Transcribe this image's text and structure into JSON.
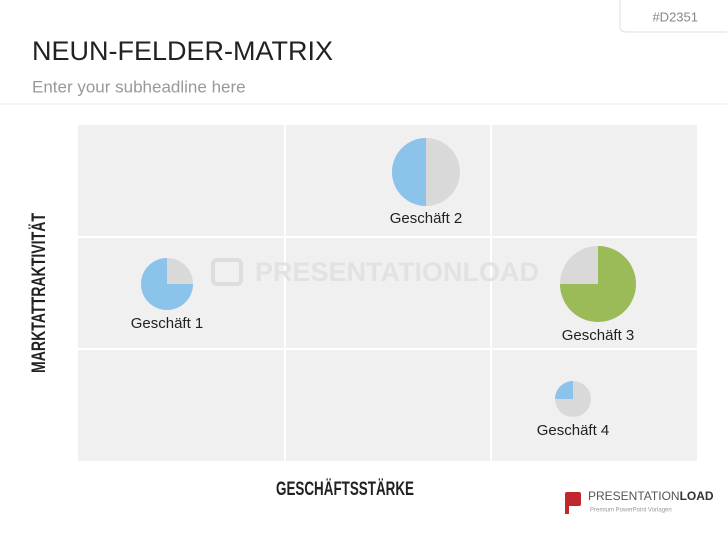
{
  "header": {
    "code": "#D2351",
    "title": "NEUN-FELDER-MATRIX",
    "subtitle": "Enter your subheadline here"
  },
  "matrix": {
    "y_label": "MARKTATTRAKTIVITÄT",
    "x_label": "GESCHÄFTSSTÄRKE",
    "watermark": "PRESENTATIONLOAD",
    "items": [
      {
        "label": "Geschäft 1",
        "share": 75,
        "color": "#8cc3ea"
      },
      {
        "label": "Geschäft 2",
        "share": 50,
        "color": "#8cc3ea"
      },
      {
        "label": "Geschäft 3",
        "share": 75,
        "color": "#9bbb59"
      },
      {
        "label": "Geschäft 4",
        "share": 25,
        "color": "#8cc3ea"
      }
    ]
  },
  "logo": {
    "brand_light": "PRESENTATION",
    "brand_bold": "LOAD",
    "tagline": "Premium PowerPoint Vorlagen"
  }
}
